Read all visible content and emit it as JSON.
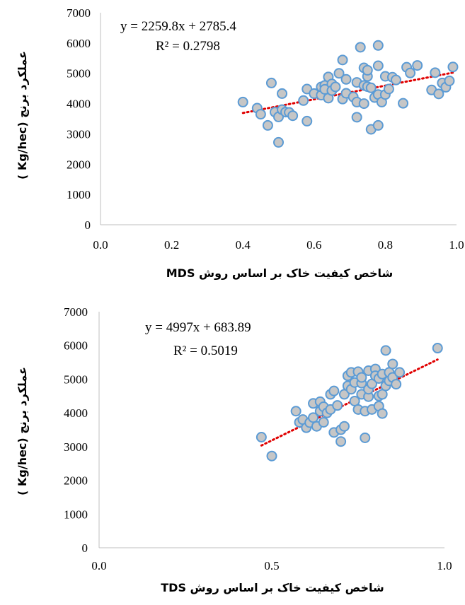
{
  "chart_data": [
    {
      "type": "scatter",
      "xlabel": "شاخص کیفیت خاک بر اساس روش MDS",
      "ylabel": "عملکرد برنج (Kg/hec )",
      "xlim": [
        0,
        1
      ],
      "ylim": [
        0,
        7000
      ],
      "x_ticks": [
        "0.0",
        "0.2",
        "0.4",
        "0.6",
        "0.8",
        "1.0"
      ],
      "y_ticks": [
        "0",
        "1000",
        "2000",
        "3000",
        "4000",
        "5000",
        "6000",
        "7000"
      ],
      "trendline": {
        "equation": "y = 2259.8x + 2785.4",
        "r2": "R² = 0.2798",
        "slope": 2259.8,
        "intercept": 2785.4,
        "x_range": [
          0.4,
          0.99
        ]
      },
      "grid": false,
      "x": [
        0.4,
        0.44,
        0.45,
        0.47,
        0.48,
        0.49,
        0.5,
        0.5,
        0.51,
        0.51,
        0.52,
        0.53,
        0.54,
        0.57,
        0.58,
        0.58,
        0.6,
        0.62,
        0.62,
        0.63,
        0.63,
        0.64,
        0.64,
        0.65,
        0.65,
        0.66,
        0.67,
        0.68,
        0.68,
        0.69,
        0.69,
        0.71,
        0.72,
        0.72,
        0.72,
        0.73,
        0.74,
        0.74,
        0.74,
        0.75,
        0.75,
        0.75,
        0.76,
        0.76,
        0.77,
        0.78,
        0.78,
        0.78,
        0.78,
        0.79,
        0.8,
        0.8,
        0.81,
        0.82,
        0.83,
        0.85,
        0.86,
        0.87,
        0.89,
        0.93,
        0.94,
        0.95,
        0.96,
        0.97,
        0.98,
        0.99
      ],
      "y": [
        4050,
        3850,
        3650,
        3280,
        4680,
        3720,
        2720,
        3560,
        3800,
        4330,
        3720,
        3710,
        3600,
        4100,
        3420,
        4480,
        4330,
        4280,
        4550,
        4600,
        4470,
        4180,
        4880,
        4650,
        4430,
        4550,
        5000,
        4150,
        5440,
        4800,
        4340,
        4220,
        4050,
        4700,
        3550,
        5860,
        5180,
        4000,
        4600,
        4900,
        5100,
        4560,
        4520,
        3150,
        4200,
        3280,
        4300,
        5920,
        5250,
        4050,
        4300,
        4900,
        4480,
        4870,
        4780,
        4010,
        5200,
        5010,
        5260,
        4450,
        5020,
        4320,
        4680,
        4540,
        4750,
        5210
      ]
    },
    {
      "type": "scatter",
      "xlabel": "شاخص کیفیت خاک بر اساس روش TDS",
      "ylabel": "عملکرد برنج (Kg/hec )",
      "xlim": [
        0,
        1
      ],
      "ylim": [
        0,
        7000
      ],
      "x_ticks": [
        "0.0",
        "0.5",
        "1.0"
      ],
      "y_ticks": [
        "0",
        "1000",
        "2000",
        "3000",
        "4000",
        "5000",
        "6000",
        "7000"
      ],
      "trendline": {
        "equation": "y = 4997x + 683.89",
        "r2": "R² = 0.5019",
        "slope": 4997,
        "intercept": 683.89,
        "x_range": [
          0.47,
          0.98
        ]
      },
      "grid": false,
      "x": [
        0.47,
        0.5,
        0.57,
        0.58,
        0.59,
        0.6,
        0.61,
        0.62,
        0.62,
        0.63,
        0.64,
        0.64,
        0.65,
        0.65,
        0.66,
        0.67,
        0.67,
        0.68,
        0.68,
        0.69,
        0.7,
        0.7,
        0.71,
        0.71,
        0.72,
        0.72,
        0.73,
        0.73,
        0.74,
        0.74,
        0.75,
        0.75,
        0.76,
        0.76,
        0.76,
        0.77,
        0.77,
        0.78,
        0.78,
        0.78,
        0.79,
        0.79,
        0.8,
        0.8,
        0.81,
        0.81,
        0.81,
        0.82,
        0.82,
        0.82,
        0.83,
        0.83,
        0.84,
        0.84,
        0.85,
        0.85,
        0.86,
        0.87,
        0.98
      ],
      "y": [
        3280,
        2720,
        4050,
        3720,
        3800,
        3560,
        3710,
        4280,
        3860,
        3600,
        4330,
        4050,
        3720,
        4180,
        4000,
        4100,
        4550,
        3420,
        4650,
        4220,
        3150,
        3500,
        3600,
        4550,
        5100,
        4800,
        5200,
        4700,
        4350,
        4900,
        4100,
        5220,
        4550,
        4880,
        5050,
        4050,
        3260,
        4480,
        4700,
        5250,
        4860,
        4100,
        5300,
        5100,
        4200,
        4500,
        5020,
        5150,
        3980,
        4550,
        4800,
        5850,
        4950,
        5200,
        5450,
        5050,
        4850,
        5200,
        5920
      ]
    }
  ]
}
